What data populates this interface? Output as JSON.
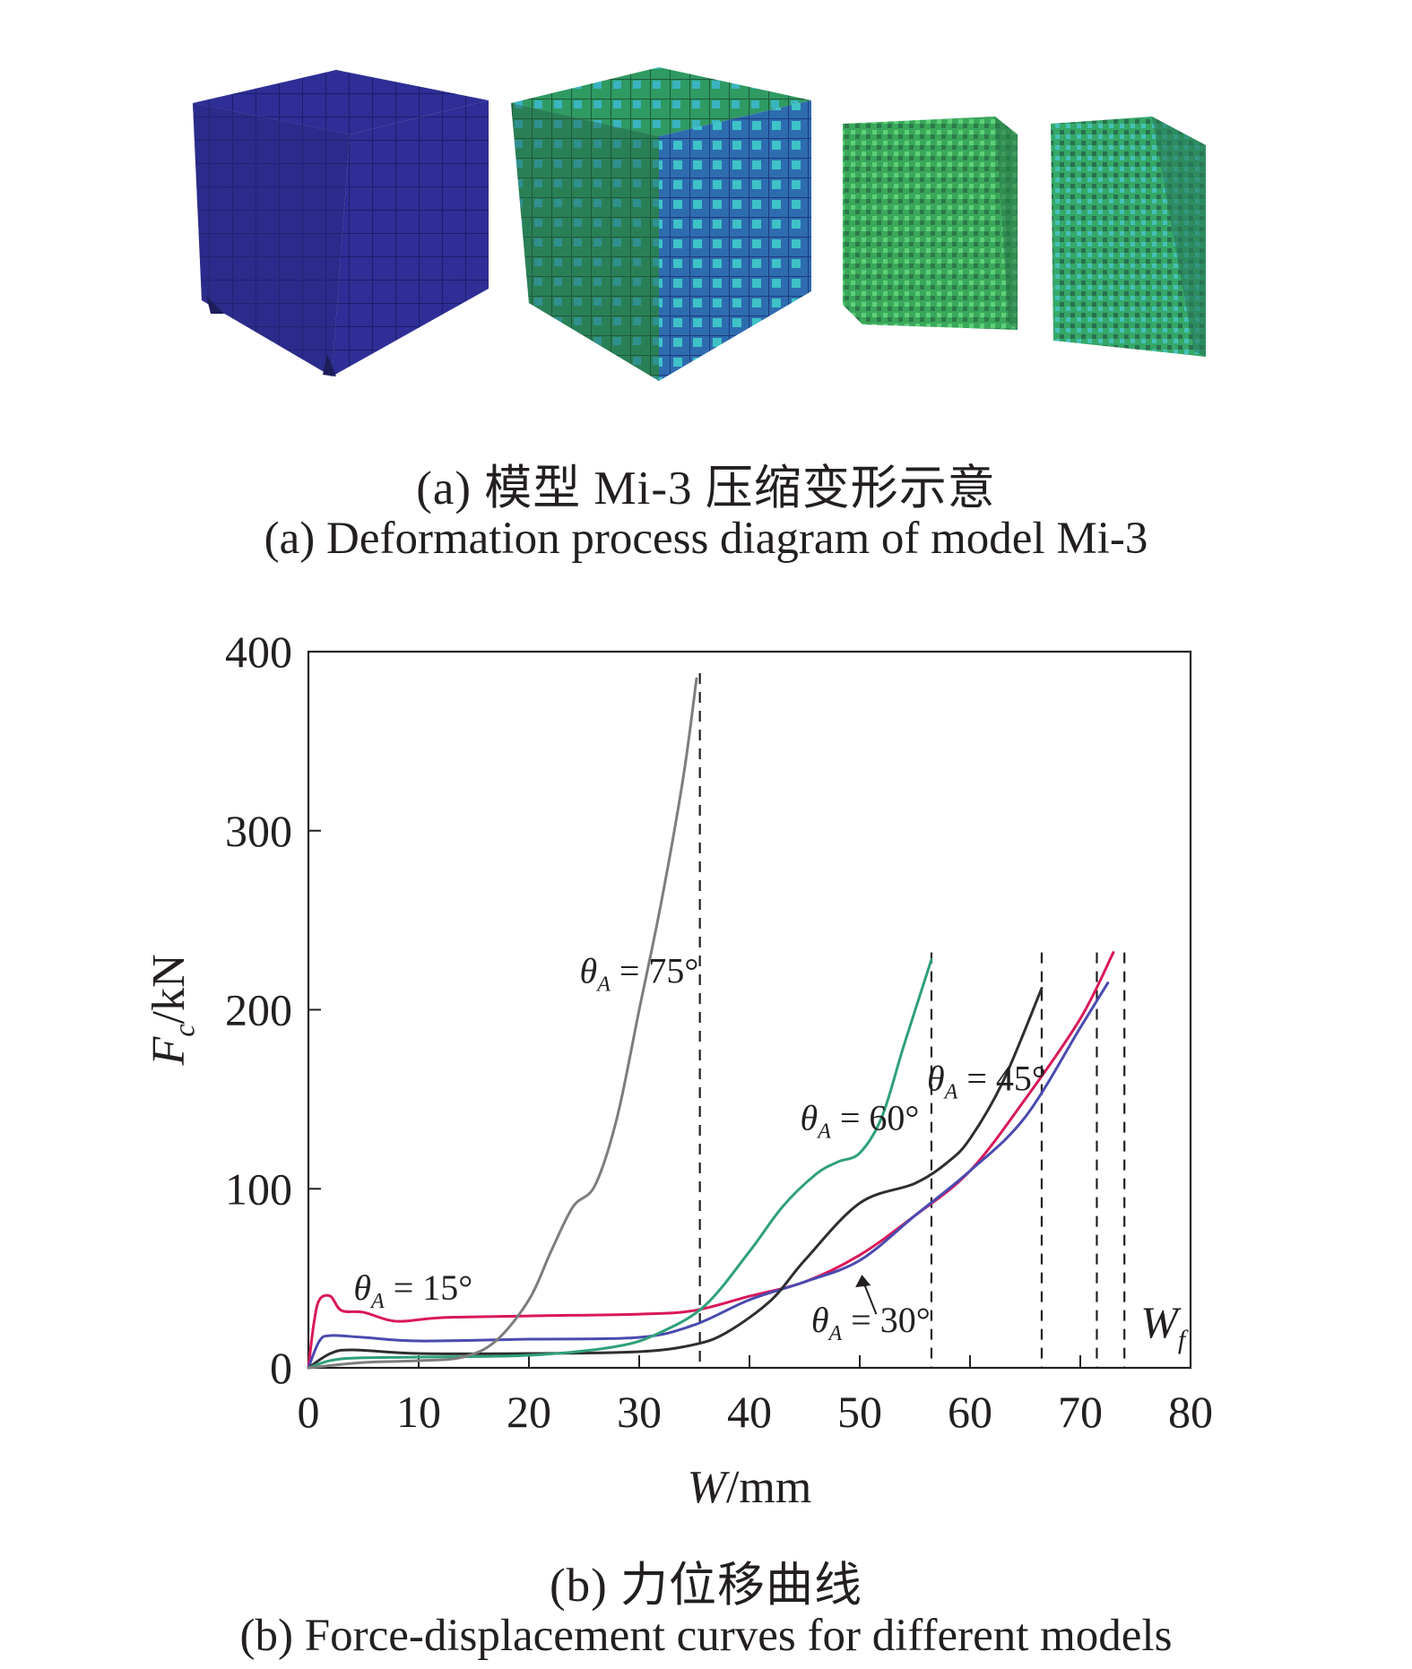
{
  "figure": {
    "caption_a_zh": "(a) 模型 Mi-3 压缩变形示意",
    "caption_a_en": "(a) Deformation process diagram of model Mi-3",
    "caption_b_zh": "(b) 力位移曲线",
    "caption_b_en": "(b) Force-displacement curves for different models"
  },
  "panel_a": {
    "description_colors": [
      "#2b2b8f",
      "#2f9a4a",
      "#3cb35a",
      "#32a86e"
    ]
  },
  "chart_data": {
    "type": "line",
    "xlabel": "W/mm",
    "ylabel": "Fc/kN",
    "xlim": [
      0,
      80
    ],
    "ylim": [
      0,
      400
    ],
    "xticks": [
      0,
      10,
      20,
      30,
      40,
      50,
      60,
      70,
      80
    ],
    "yticks": [
      0,
      100,
      200,
      300,
      400
    ],
    "grid": false,
    "series": [
      {
        "name": "θA = 15°",
        "color": "#d9185a",
        "x": [
          0,
          0.5,
          1,
          2,
          3,
          5,
          8,
          12,
          20,
          30,
          35,
          40,
          45,
          50,
          55,
          60,
          65,
          70,
          73
        ],
        "y": [
          0,
          25,
          38,
          40,
          32,
          31,
          26,
          28,
          29,
          30,
          32,
          40,
          48,
          63,
          85,
          110,
          150,
          195,
          232
        ]
      },
      {
        "name": "θA = 30°",
        "color": "#4a4ab0",
        "x": [
          0,
          1,
          2,
          5,
          10,
          20,
          30,
          35,
          40,
          45,
          50,
          55,
          60,
          65,
          70,
          72.5
        ],
        "y": [
          0,
          15,
          18,
          17,
          15,
          16,
          17,
          24,
          38,
          48,
          60,
          85,
          110,
          140,
          190,
          215
        ]
      },
      {
        "name": "θA = 45°",
        "color": "#2e2e32",
        "x": [
          0,
          2,
          4,
          10,
          20,
          30,
          35,
          38,
          42,
          45,
          50,
          55,
          58,
          60,
          63,
          66.5
        ],
        "y": [
          0,
          8,
          10,
          8,
          8,
          9,
          13,
          20,
          38,
          60,
          92,
          103,
          115,
          128,
          160,
          212
        ]
      },
      {
        "name": "θA = 60°",
        "color": "#2fa07a",
        "x": [
          0,
          3,
          10,
          20,
          28,
          32,
          36,
          40,
          43,
          46,
          48,
          50,
          52,
          54,
          56.5
        ],
        "y": [
          0,
          5,
          6,
          7,
          12,
          20,
          35,
          65,
          90,
          108,
          115,
          120,
          140,
          180,
          228
        ]
      },
      {
        "name": "θA = 75°",
        "color": "#7d7d7d",
        "x": [
          0,
          5,
          10,
          14,
          17,
          20,
          22,
          24,
          26,
          28,
          30,
          32,
          34,
          35.2
        ],
        "y": [
          0,
          3,
          4,
          6,
          15,
          38,
          65,
          90,
          102,
          140,
          200,
          260,
          330,
          385
        ]
      }
    ],
    "vertical_lines_x": [
      35.5,
      56.5,
      66.5,
      71.5,
      74
    ],
    "annotations": [
      {
        "text": "θA = 75°",
        "x": 30,
        "y": 215
      },
      {
        "text": "θA = 60°",
        "x": 50,
        "y": 133
      },
      {
        "text": "θA = 45°",
        "x": 61.5,
        "y": 155
      },
      {
        "text": "θA = 15°",
        "x": 9.5,
        "y": 38
      },
      {
        "text": "θA = 30°",
        "x": 51,
        "y": 20
      },
      {
        "text": "Wf",
        "x": 77.5,
        "y": 17
      }
    ]
  }
}
